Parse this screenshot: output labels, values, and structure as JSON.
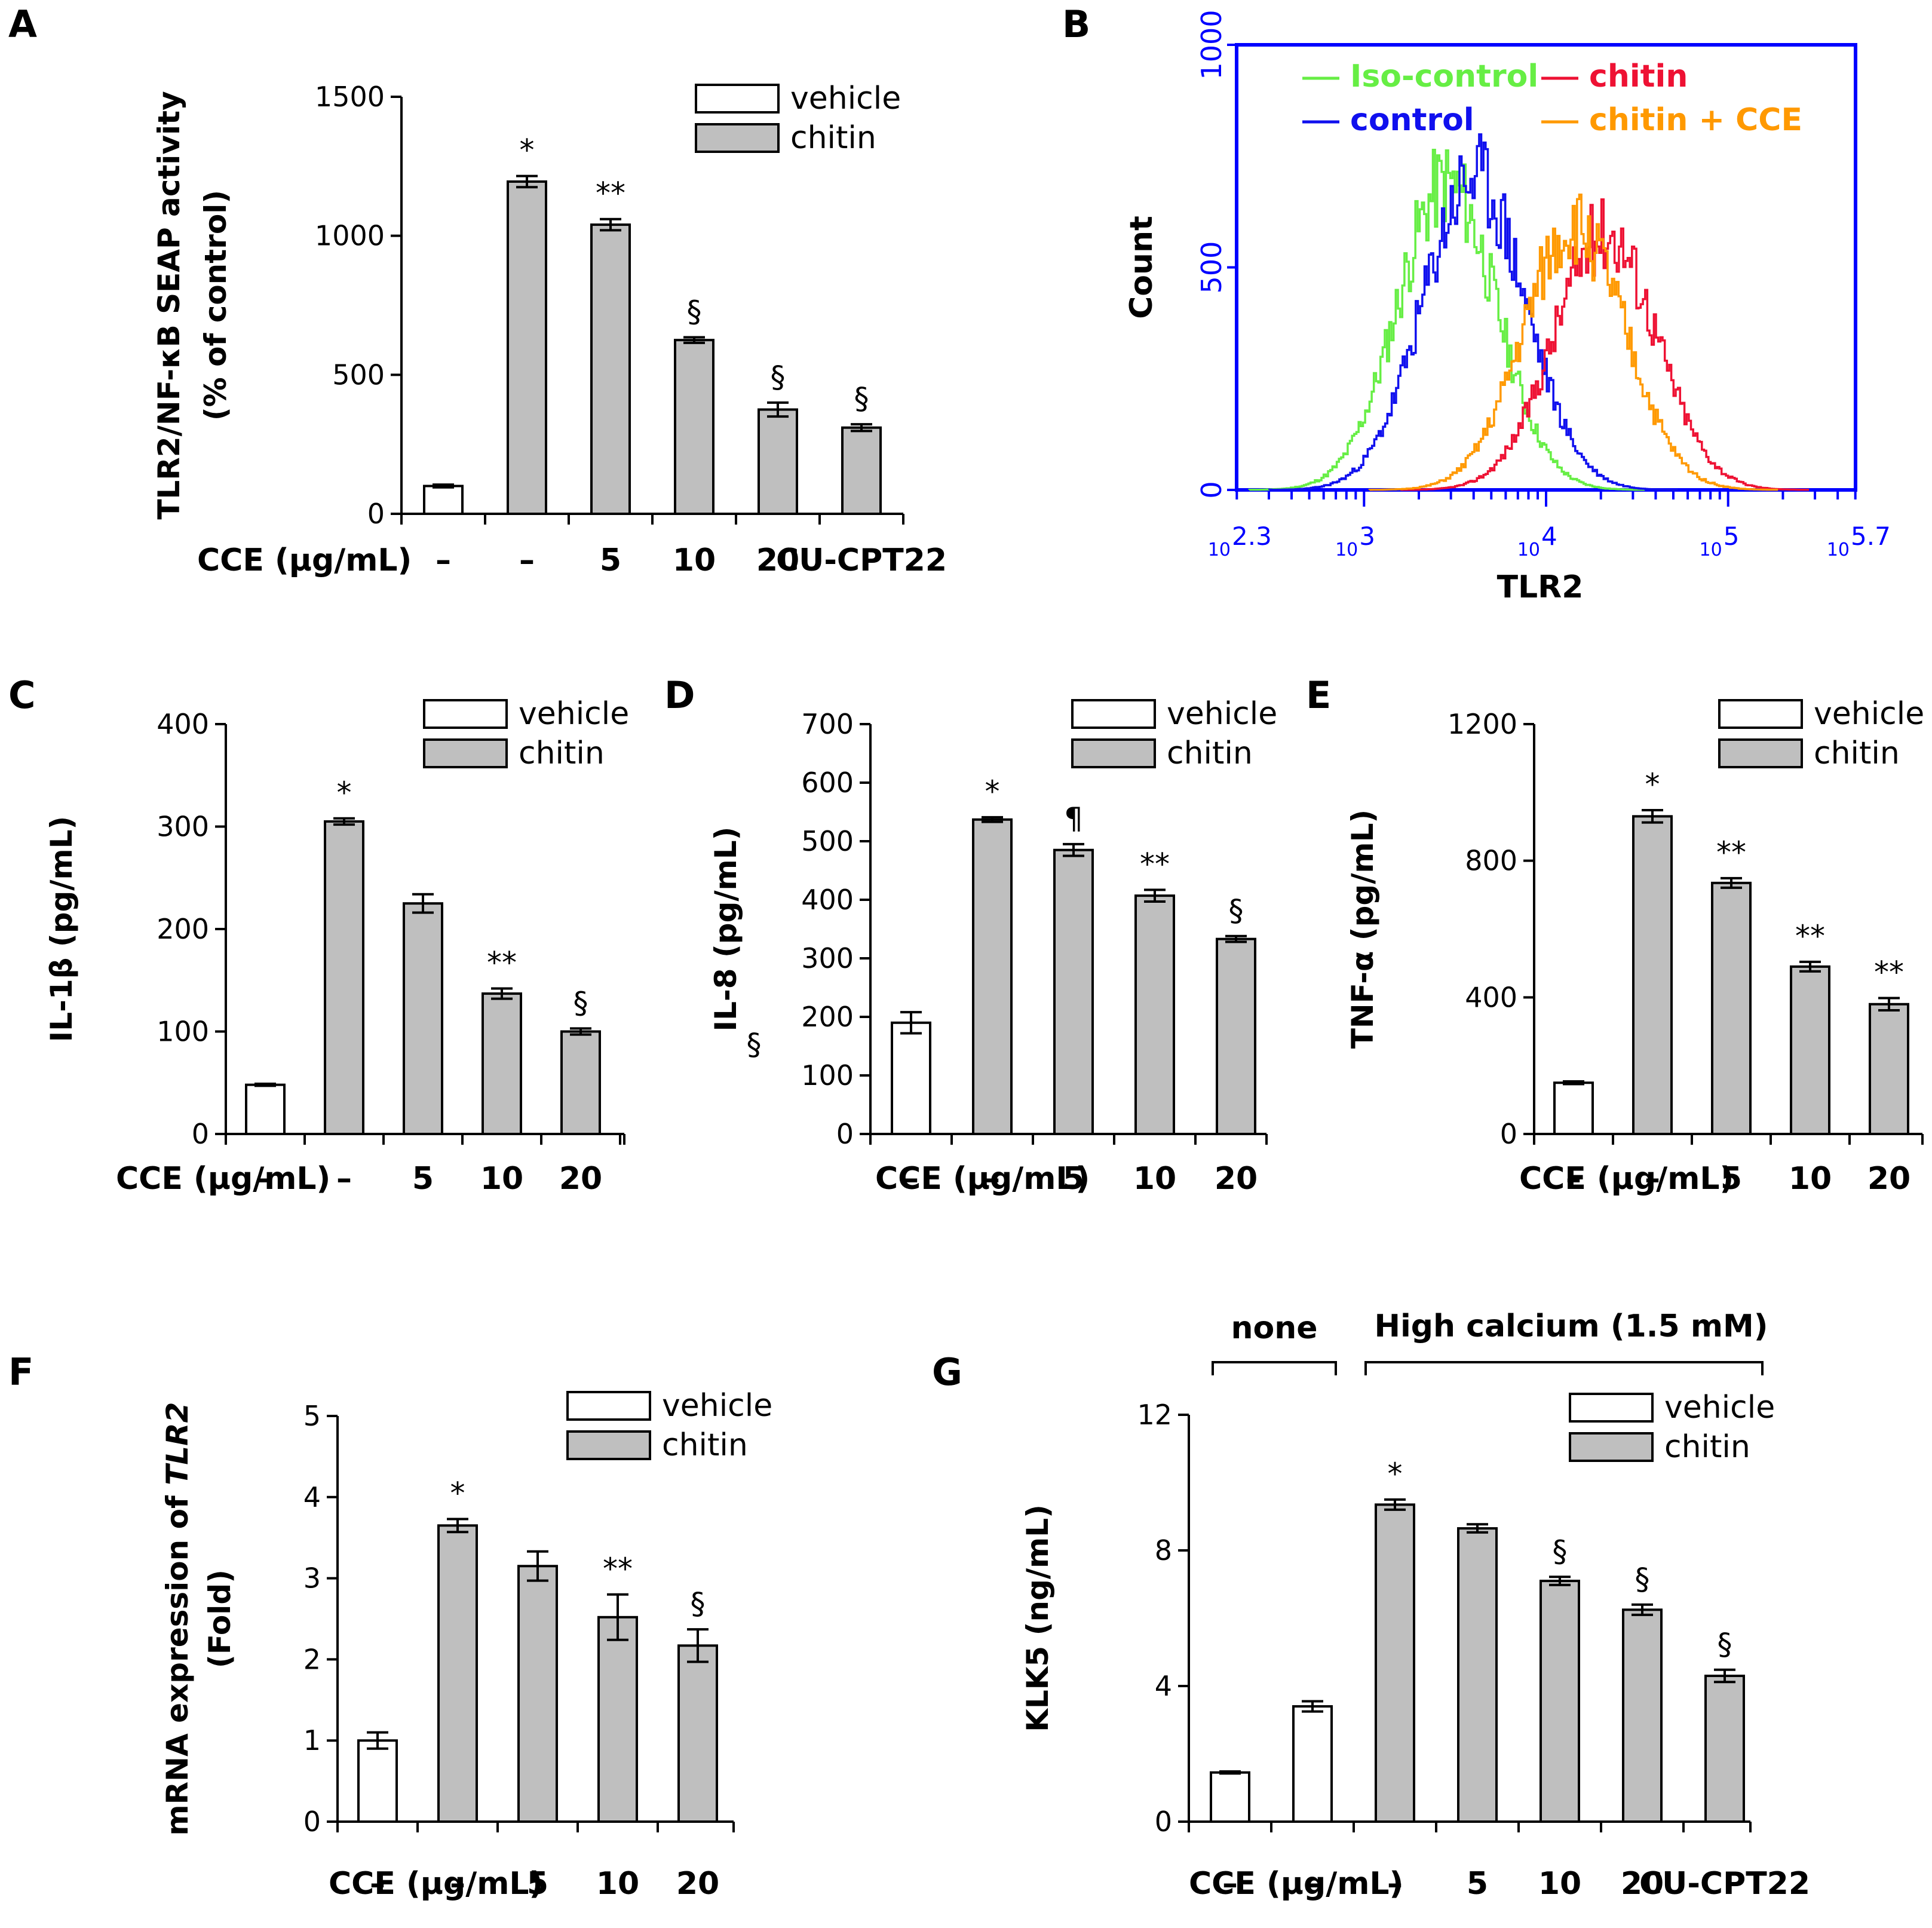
{
  "colors": {
    "vehicle_fill": "#ffffff",
    "chitin_fill": "#bfbfbf",
    "bar_stroke": "#000000",
    "flow_axis": "#0000ff",
    "iso": "#66ee44",
    "control": "#1010ee",
    "chitin_line": "#ee1133",
    "cce_line": "#ff9900"
  },
  "legend": {
    "vehicle": "vehicle",
    "chitin": "chitin"
  },
  "chart_data": [
    {
      "id": "A",
      "letter": "A",
      "type": "bar",
      "ylabel": [
        "TLR2/NF-κB SEAP activity",
        "(% of control)"
      ],
      "ylim": [
        0,
        1500
      ],
      "yticks": [
        0,
        500,
        1000,
        1500
      ],
      "xlabel": "CCE (μg/mL)",
      "categories": [
        "–",
        "–",
        "5",
        "10",
        "20",
        "CU-CPT22"
      ],
      "groups": [
        "vehicle",
        "chitin",
        "chitin",
        "chitin",
        "chitin",
        "chitin"
      ],
      "values": [
        100,
        1195,
        1040,
        625,
        375,
        310
      ],
      "errors": [
        5,
        20,
        20,
        10,
        25,
        12
      ],
      "sig": [
        "",
        "*",
        "**",
        "§",
        "§",
        "§"
      ]
    },
    {
      "id": "B",
      "letter": "B",
      "type": "line",
      "xscale": "log",
      "xlabel": "TLR2",
      "ylabel": "Count",
      "ylim": [
        0,
        1000
      ],
      "yticks": [
        0,
        500,
        1000
      ],
      "xlim_log10": [
        2.3,
        5.7
      ],
      "xtick_exponents": [
        "2.3",
        "3",
        "4",
        "5",
        "5.7"
      ],
      "xtick_base": "10",
      "series": [
        {
          "name": "Iso-control",
          "color_key": "iso",
          "mu": 3.45,
          "sigma": 0.27,
          "peak": 690,
          "seed": 11
        },
        {
          "name": "control",
          "color_key": "control",
          "mu": 3.6,
          "sigma": 0.28,
          "peak": 700,
          "seed": 23
        },
        {
          "name": "chitin",
          "color_key": "chitin_line",
          "mu": 4.32,
          "sigma": 0.28,
          "peak": 580,
          "seed": 37
        },
        {
          "name": "chitin + CCE",
          "color_key": "cce_line",
          "mu": 4.15,
          "sigma": 0.28,
          "peak": 590,
          "seed": 51
        }
      ]
    },
    {
      "id": "C",
      "letter": "C",
      "type": "bar",
      "ylabel": [
        "IL-1β (pg/mL)"
      ],
      "ylim": [
        0,
        400
      ],
      "yticks": [
        0,
        100,
        200,
        300,
        400
      ],
      "xlabel": "CCE (μg/mL)",
      "categories": [
        "–",
        "–",
        "5",
        "10",
        "20"
      ],
      "groups": [
        "vehicle",
        "chitin",
        "chitin",
        "chitin",
        "chitin"
      ],
      "values": [
        48,
        305,
        225,
        137,
        100
      ],
      "errors": [
        1,
        3,
        9,
        5,
        3
      ],
      "sig": [
        "",
        "*",
        "",
        "**",
        "§"
      ]
    },
    {
      "id": "D",
      "letter": "D",
      "type": "bar",
      "ylabel": [
        "IL-8 (pg/mL)"
      ],
      "ylim": [
        0,
        700
      ],
      "yticks": [
        0,
        100,
        200,
        300,
        400,
        500,
        600,
        700
      ],
      "xlabel": "CCE (μg/mL)",
      "categories": [
        "–",
        "–",
        "5",
        "10",
        "20"
      ],
      "groups": [
        "vehicle",
        "chitin",
        "chitin",
        "chitin",
        "chitin"
      ],
      "values": [
        190,
        537,
        485,
        407,
        333
      ],
      "errors": [
        18,
        4,
        10,
        10,
        5
      ],
      "sig": [
        "",
        "*",
        "¶",
        "**",
        "§"
      ],
      "stray_symbol": "§"
    },
    {
      "id": "E",
      "letter": "E",
      "type": "bar",
      "ylabel": [
        "TNF-α (pg/mL)"
      ],
      "ylim": [
        0,
        1200
      ],
      "yticks": [
        0,
        400,
        800,
        1200
      ],
      "xlabel": "CCE (μg/mL)",
      "categories": [
        "–",
        "–",
        "5",
        "10",
        "20"
      ],
      "groups": [
        "vehicle",
        "chitin",
        "chitin",
        "chitin",
        "chitin"
      ],
      "values": [
        150,
        930,
        735,
        490,
        380
      ],
      "errors": [
        4,
        18,
        14,
        14,
        18
      ],
      "sig": [
        "",
        "*",
        "**",
        "**",
        "**"
      ]
    },
    {
      "id": "F",
      "letter": "F",
      "type": "bar",
      "ylabel": [
        "mRNA expression of TLR2",
        "(Fold)"
      ],
      "ylim": [
        0,
        5
      ],
      "yticks": [
        0,
        1,
        2,
        3,
        4,
        5
      ],
      "xlabel": "CCE (μg/mL)",
      "categories": [
        "–",
        "–",
        "5",
        "10",
        "20"
      ],
      "groups": [
        "vehicle",
        "chitin",
        "chitin",
        "chitin",
        "chitin"
      ],
      "values": [
        1.0,
        3.65,
        3.15,
        2.52,
        2.17
      ],
      "errors": [
        0.1,
        0.08,
        0.18,
        0.28,
        0.2
      ],
      "sig": [
        "",
        "*",
        "",
        "**",
        "§"
      ]
    },
    {
      "id": "G",
      "letter": "G",
      "type": "bar",
      "ylabel": [
        "KLK5 (ng/mL)"
      ],
      "ylim": [
        0,
        12
      ],
      "yticks": [
        0,
        4,
        8,
        12
      ],
      "xlabel": "CCE (μg/mL)",
      "categories": [
        "–",
        "–",
        "–",
        "5",
        "10",
        "20",
        "CU-CPT22"
      ],
      "groups": [
        "vehicle",
        "vehicle",
        "chitin",
        "chitin",
        "chitin",
        "chitin",
        "chitin"
      ],
      "values": [
        1.45,
        3.4,
        9.35,
        8.65,
        7.1,
        6.25,
        4.3
      ],
      "errors": [
        0.03,
        0.15,
        0.15,
        0.12,
        0.12,
        0.15,
        0.18
      ],
      "sig": [
        "",
        "",
        "*",
        "",
        "§",
        "§",
        "§"
      ],
      "bracket_labels": [
        "none",
        "High calcium (1.5 mM)"
      ]
    }
  ]
}
